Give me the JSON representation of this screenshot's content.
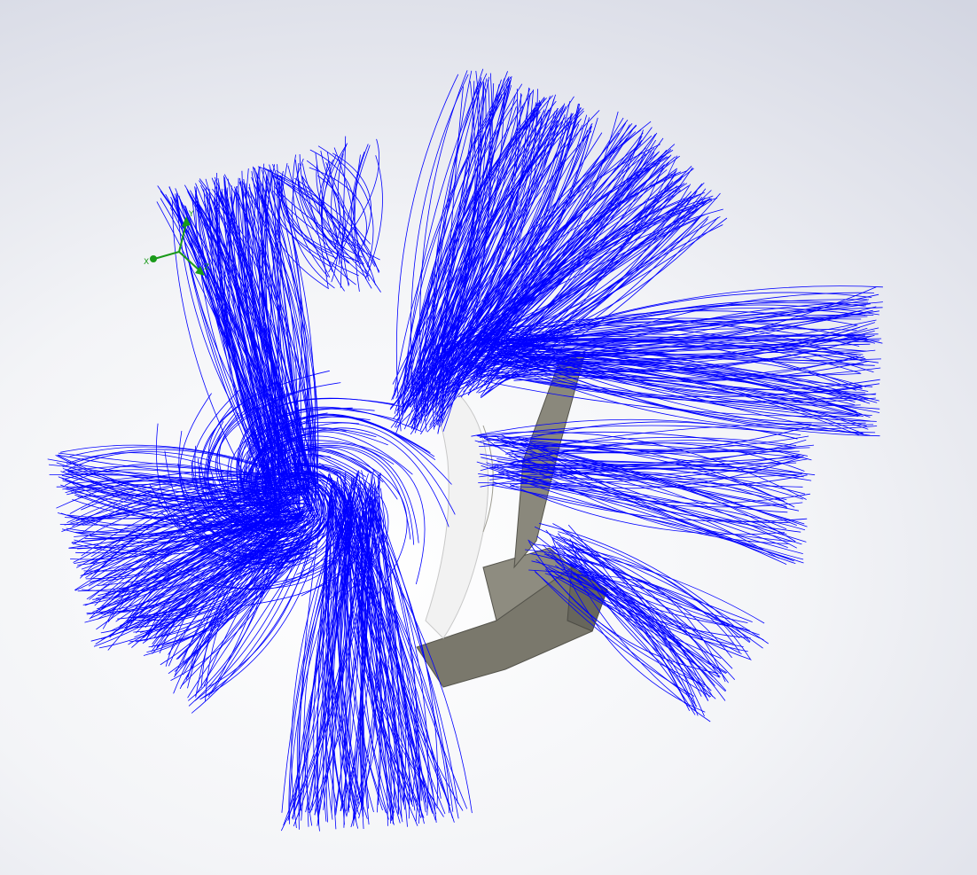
{
  "viewport": {
    "background_top": "#d8dbe6",
    "background_bottom": "#ffffff"
  },
  "model": {
    "part_color": "#7d7b6f",
    "part_edge_color": "#55544c"
  },
  "flow_trajectories": {
    "color": "#0000ff"
  },
  "triad": {
    "x_axis_label": "X",
    "y_axis_label": "Y",
    "z_axis_label": "Z",
    "color": "#1a9a1a"
  }
}
